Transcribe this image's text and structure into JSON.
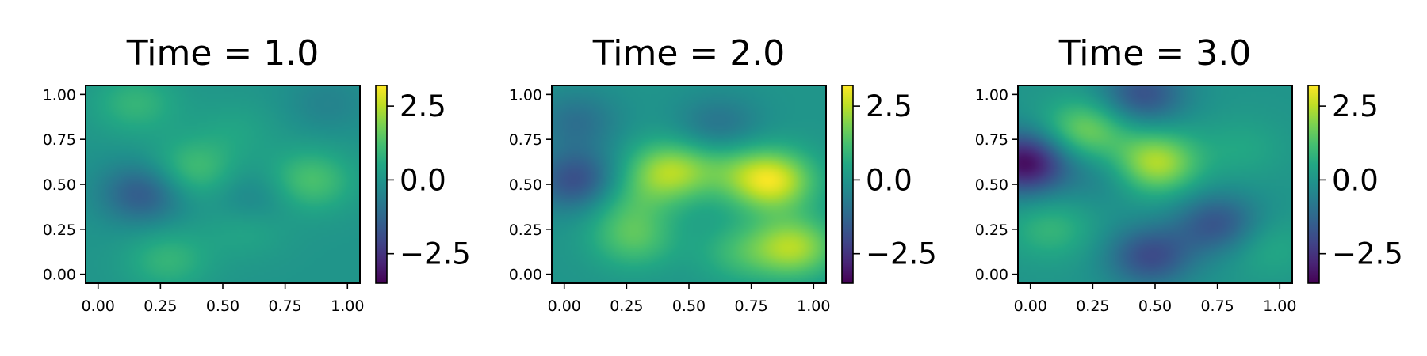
{
  "chart_data": [
    {
      "type": "heatmap",
      "title": "Time = 1.0",
      "xlim": [
        -0.05,
        1.05
      ],
      "ylim": [
        -0.05,
        1.05
      ],
      "xticks": [
        "0.00",
        "0.25",
        "0.50",
        "0.75",
        "1.00"
      ],
      "yticks": [
        "0.00",
        "0.25",
        "0.50",
        "0.75",
        "1.00"
      ],
      "colorbar": {
        "range": [
          -3.5,
          3.2
        ],
        "ticks": [
          "2.5",
          "0.0",
          "−2.5"
        ],
        "tick_values": [
          2.5,
          0.0,
          -2.5
        ],
        "colormap": "viridis"
      },
      "blobs": [
        {
          "x": 0.38,
          "y": 0.58,
          "value": 1.2
        },
        {
          "x": 0.85,
          "y": 0.52,
          "value": 1.3
        },
        {
          "x": 0.18,
          "y": 0.45,
          "value": -1.6
        },
        {
          "x": 0.15,
          "y": 0.95,
          "value": 0.9
        },
        {
          "x": 0.6,
          "y": 0.28,
          "value": 0.7
        },
        {
          "x": 0.28,
          "y": 0.08,
          "value": 0.9
        },
        {
          "x": 0.62,
          "y": 0.4,
          "value": -0.8
        },
        {
          "x": 0.55,
          "y": 0.8,
          "value": 0.4
        },
        {
          "x": 0.92,
          "y": 0.95,
          "value": -0.5
        }
      ]
    },
    {
      "type": "heatmap",
      "title": "Time = 2.0",
      "xlim": [
        -0.05,
        1.05
      ],
      "ylim": [
        -0.05,
        1.05
      ],
      "xticks": [
        "0.00",
        "0.25",
        "0.50",
        "0.75",
        "1.00"
      ],
      "yticks": [
        "0.00",
        "0.25",
        "0.50",
        "0.75",
        "1.00"
      ],
      "colorbar": {
        "range": [
          -3.5,
          3.2
        ],
        "ticks": [
          "2.5",
          "0.0",
          "−2.5"
        ],
        "tick_values": [
          2.5,
          0.0,
          -2.5
        ],
        "colormap": "viridis"
      },
      "blobs": [
        {
          "x": 0.42,
          "y": 0.57,
          "value": 2.3
        },
        {
          "x": 0.83,
          "y": 0.52,
          "value": 2.9
        },
        {
          "x": 0.92,
          "y": 0.15,
          "value": 2.3
        },
        {
          "x": 0.05,
          "y": 0.52,
          "value": -1.9
        },
        {
          "x": 0.05,
          "y": 0.85,
          "value": -1.0
        },
        {
          "x": 0.28,
          "y": 0.2,
          "value": 1.3
        },
        {
          "x": 0.62,
          "y": 0.82,
          "value": -1.0
        },
        {
          "x": 0.7,
          "y": 0.12,
          "value": 0.9
        },
        {
          "x": 0.25,
          "y": 0.4,
          "value": 0.8
        },
        {
          "x": 0.65,
          "y": 0.6,
          "value": 0.8
        }
      ]
    },
    {
      "type": "heatmap",
      "title": "Time = 3.0",
      "xlim": [
        -0.05,
        1.05
      ],
      "ylim": [
        -0.05,
        1.05
      ],
      "xticks": [
        "0.00",
        "0.25",
        "0.50",
        "0.75",
        "1.00"
      ],
      "yticks": [
        "0.00",
        "0.25",
        "0.50",
        "0.75",
        "1.00"
      ],
      "colorbar": {
        "range": [
          -3.5,
          3.2
        ],
        "ticks": [
          "2.5",
          "0.0",
          "−2.5"
        ],
        "tick_values": [
          2.5,
          0.0,
          -2.5
        ],
        "colormap": "viridis"
      },
      "blobs": [
        {
          "x": -0.02,
          "y": 0.62,
          "value": -3.3
        },
        {
          "x": 0.5,
          "y": 0.62,
          "value": 2.5
        },
        {
          "x": 0.22,
          "y": 0.8,
          "value": 1.8
        },
        {
          "x": 0.08,
          "y": 0.25,
          "value": 0.9
        },
        {
          "x": 0.75,
          "y": 0.28,
          "value": -1.7
        },
        {
          "x": 0.48,
          "y": 0.1,
          "value": -1.9
        },
        {
          "x": 0.45,
          "y": 1.0,
          "value": -1.8
        },
        {
          "x": 0.85,
          "y": 0.7,
          "value": 0.5
        },
        {
          "x": 0.3,
          "y": 0.55,
          "value": -0.6
        },
        {
          "x": 0.95,
          "y": 0.15,
          "value": 0.6
        }
      ]
    }
  ]
}
